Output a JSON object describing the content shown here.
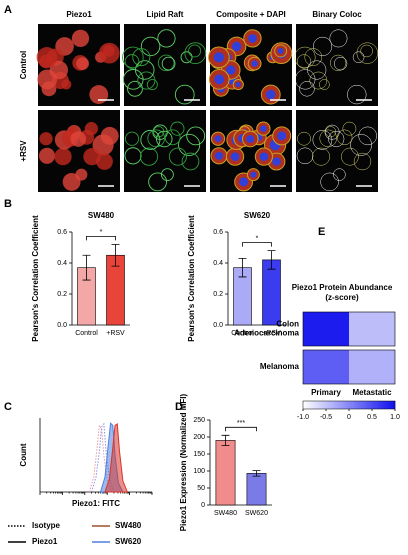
{
  "panel_labels": [
    "A",
    "B",
    "C",
    "D",
    "E"
  ],
  "microscopy": {
    "columns": [
      "Piezo1",
      "Lipid Raft",
      "Composite + DAPI",
      "Binary Coloc"
    ],
    "rows": [
      "Control",
      "+RSV"
    ]
  },
  "chart_data": [
    {
      "type": "bar",
      "title": "SW480",
      "y_label": "Pearson's Correlation Coefficient",
      "categories": [
        "Control",
        "+RSV"
      ],
      "values": [
        0.37,
        0.45
      ],
      "errors": [
        0.08,
        0.07
      ],
      "colors": [
        "#f4a7a7",
        "#e8443a"
      ],
      "ylim": [
        0,
        0.6
      ],
      "yticks": [
        {
          "value": 0,
          "label": "0.0"
        },
        0.2,
        0.4,
        0.6
      ],
      "annotation": "*"
    },
    {
      "type": "bar",
      "title": "SW620",
      "y_label": "Pearson's Correlation Coefficient",
      "categories": [
        "Control",
        "+RSV"
      ],
      "values": [
        0.37,
        0.42
      ],
      "errors": [
        0.06,
        0.06
      ],
      "colors": [
        "#aaaaf6",
        "#3b3bef"
      ],
      "ylim": [
        0,
        0.6
      ],
      "yticks": [
        {
          "value": 0,
          "label": "0.0"
        },
        0.2,
        0.4,
        0.6
      ],
      "annotation": "*"
    },
    {
      "type": "histogram-overlay",
      "x_label": "Piezo1: FITC",
      "y_label": "Count",
      "xlim": [
        0,
        5
      ],
      "ylim": [
        0,
        100
      ],
      "series": [
        {
          "color": "#e89a9a",
          "dashed": true,
          "filled": false,
          "x": [
            2.2,
            2.4,
            2.55,
            2.65,
            2.75,
            2.85,
            3.0,
            3.2
          ],
          "values": [
            0,
            20,
            60,
            90,
            85,
            50,
            15,
            0
          ]
        },
        {
          "color": "#8d8df0",
          "dashed": true,
          "filled": false,
          "x": [
            2.3,
            2.5,
            2.65,
            2.75,
            2.85,
            2.95,
            3.1,
            3.3
          ],
          "values": [
            0,
            20,
            55,
            88,
            92,
            55,
            18,
            0
          ]
        },
        {
          "color": "#4f7fe0",
          "dashed": false,
          "filled": true,
          "x": [
            2.7,
            2.9,
            3.05,
            3.15,
            3.25,
            3.35,
            3.5,
            3.7
          ],
          "values": [
            0,
            20,
            65,
            93,
            90,
            50,
            12,
            0
          ]
        },
        {
          "color": "#d9342a",
          "dashed": false,
          "filled": true,
          "x": [
            2.9,
            3.1,
            3.25,
            3.35,
            3.45,
            3.55,
            3.7,
            3.9
          ],
          "values": [
            0,
            18,
            60,
            90,
            92,
            55,
            15,
            0
          ]
        }
      ],
      "legend": {
        "styles": [
          "Isotype",
          "Piezo1"
        ],
        "cells": [
          {
            "name": "SW480",
            "color": "#a0522d"
          },
          {
            "name": "SW620",
            "color": "#4f7fe0"
          }
        ]
      }
    },
    {
      "type": "bar",
      "y_label": "Piezo1 Expression (Normalized MFI)",
      "categories": [
        "SW480",
        "SW620"
      ],
      "values": [
        190,
        93
      ],
      "errors": [
        15,
        8
      ],
      "colors": [
        "#f08c8c",
        "#7b7be8"
      ],
      "ylim": [
        0,
        250
      ],
      "yticks": [
        0,
        50,
        100,
        150,
        200,
        250
      ],
      "annotation": "***"
    },
    {
      "type": "heatmap",
      "title": [
        "Piezo1 Protein Abundance",
        "(z-score)"
      ],
      "rows": [
        "Colon Adenocarcinoma",
        "Melanoma"
      ],
      "columns": [
        "Primary",
        "Metastatic"
      ],
      "values": [
        [
          0.9,
          -0.45
        ],
        [
          0.35,
          -0.35
        ]
      ],
      "colormap": [
        "#ffffff",
        "#1010ee"
      ],
      "zlim": [
        -1,
        1
      ],
      "zticks": [
        {
          "value": -1,
          "label": "-1.0"
        },
        -0.5,
        0,
        0.5,
        {
          "value": 1,
          "label": "1.0"
        }
      ]
    }
  ]
}
